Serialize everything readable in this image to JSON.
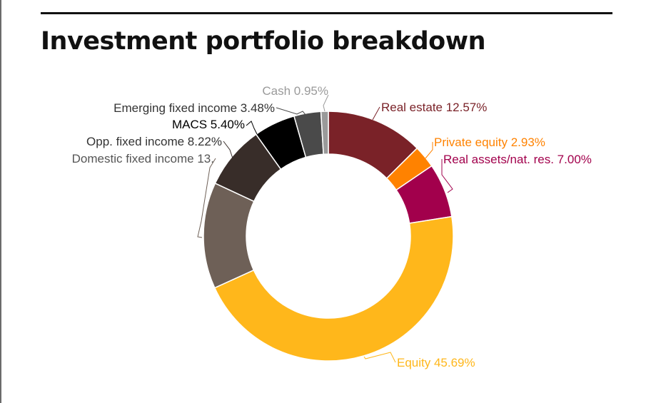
{
  "title": "Investment portfolio breakdown",
  "chart_data": {
    "type": "pie",
    "donut": true,
    "title": "Investment portfolio breakdown",
    "slices": [
      {
        "label": "Real estate 12.57%",
        "value": 12.57,
        "color": "#7a2228"
      },
      {
        "label": "Private equity 2.93%",
        "value": 2.93,
        "color": "#ff8200"
      },
      {
        "label": "Real assets/nat. res. 7.00%",
        "value": 7.0,
        "color": "#a2004c"
      },
      {
        "label": "Equity 45.69%",
        "value": 45.69,
        "color": "#ffb71b"
      },
      {
        "label": "Domestic fixed income 13.",
        "value": 13.76,
        "color": "#6e6057"
      },
      {
        "label": "Opp. fixed income 8.22%",
        "value": 8.22,
        "color": "#382d29"
      },
      {
        "label": "MACS 5.40%",
        "value": 5.4,
        "color": "#000000"
      },
      {
        "label": "Emerging fixed income 3.48%",
        "value": 3.48,
        "color": "#4a4a4a"
      },
      {
        "label": "Cash 0.95%",
        "value": 0.95,
        "color": "#9a9a9a"
      }
    ]
  }
}
